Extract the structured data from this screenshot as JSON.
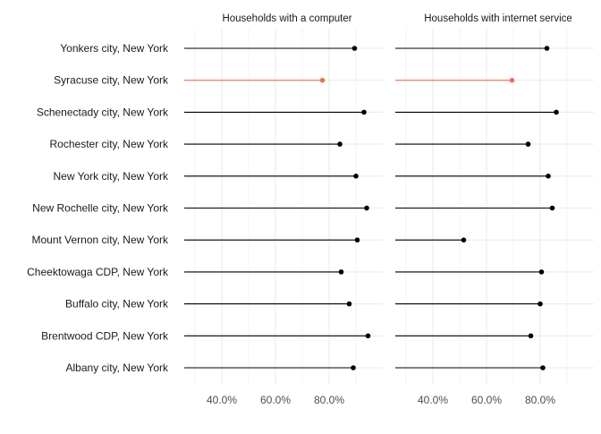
{
  "chart_data": {
    "type": "lollipop",
    "highlight_color": "#e8735a",
    "default_color": "#000000",
    "grid_color": "#ebebeb",
    "highlight_category": "Syracuse city, New York",
    "categories": [
      "Yonkers city, New York",
      "Syracuse city, New York",
      "Schenectady city, New York",
      "Rochester city, New York",
      "New York city, New York",
      "New Rochelle city, New York",
      "Mount Vernon city, New York",
      "Cheektowaga CDP, New York",
      "Buffalo city, New York",
      "Brentwood CDP, New York",
      "Albany city, New York"
    ],
    "panels": [
      {
        "title": "Households with a computer",
        "values": [
          89.5,
          77.5,
          93.0,
          84.0,
          90.0,
          94.0,
          90.5,
          84.5,
          87.5,
          94.5,
          89.0
        ]
      },
      {
        "title": "Households with internet service",
        "values": [
          82.5,
          69.5,
          86.0,
          75.5,
          83.0,
          84.5,
          51.5,
          80.5,
          80.0,
          76.5,
          81.0
        ]
      }
    ],
    "x_ticks": [
      40,
      60,
      80
    ],
    "x_tick_labels": [
      "40.0%",
      "60.0%",
      "80.0%"
    ],
    "xlim": [
      26,
      100
    ],
    "grid": true
  }
}
